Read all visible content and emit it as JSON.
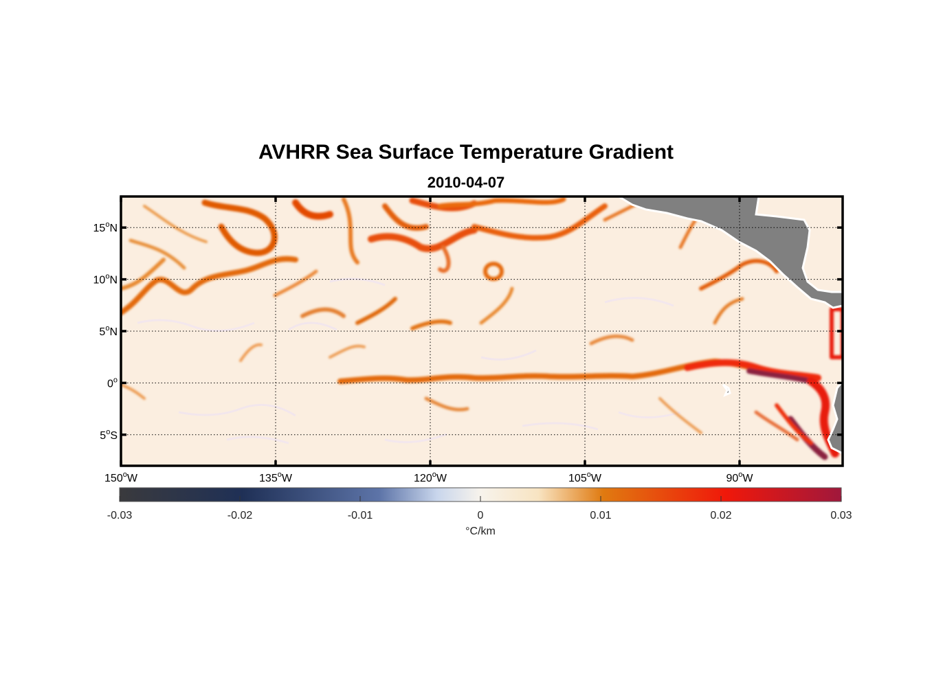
{
  "title": "AVHRR Sea Surface Temperature Gradient",
  "subtitle": "2010-04-07",
  "map": {
    "lon_range": [
      -150,
      -80
    ],
    "lat_range": [
      -8,
      18
    ],
    "lat_ticks": [
      {
        "lat": 15,
        "deg": "15",
        "hemi": "N"
      },
      {
        "lat": 10,
        "deg": "10",
        "hemi": "N"
      },
      {
        "lat": 5,
        "deg": "5",
        "hemi": "N"
      },
      {
        "lat": 0,
        "deg": "0",
        "hemi": ""
      },
      {
        "lat": -5,
        "deg": "5",
        "hemi": "S"
      }
    ],
    "lon_ticks": [
      {
        "lon": -150,
        "deg": "150",
        "hemi": "W"
      },
      {
        "lon": -135,
        "deg": "135",
        "hemi": "W"
      },
      {
        "lon": -120,
        "deg": "120",
        "hemi": "W"
      },
      {
        "lon": -105,
        "deg": "105",
        "hemi": "W"
      },
      {
        "lon": -90,
        "deg": "90",
        "hemi": "W"
      }
    ],
    "grid": "dotted",
    "land_color": "#808080",
    "ocean_base_color": "#fbeee0"
  },
  "colorbar": {
    "range": [
      -0.03,
      0.03
    ],
    "ticks": [
      "-0.03",
      "-0.02",
      "-0.01",
      "0",
      "0.01",
      "0.02",
      "0.03"
    ],
    "unit": "°C/km",
    "colors": [
      "#3a3a3d",
      "#1f3056",
      "#8a9dc8",
      "#f7f3ec",
      "#f8e7c6",
      "#e07a10",
      "#f0180a",
      "#a0183c"
    ]
  }
}
